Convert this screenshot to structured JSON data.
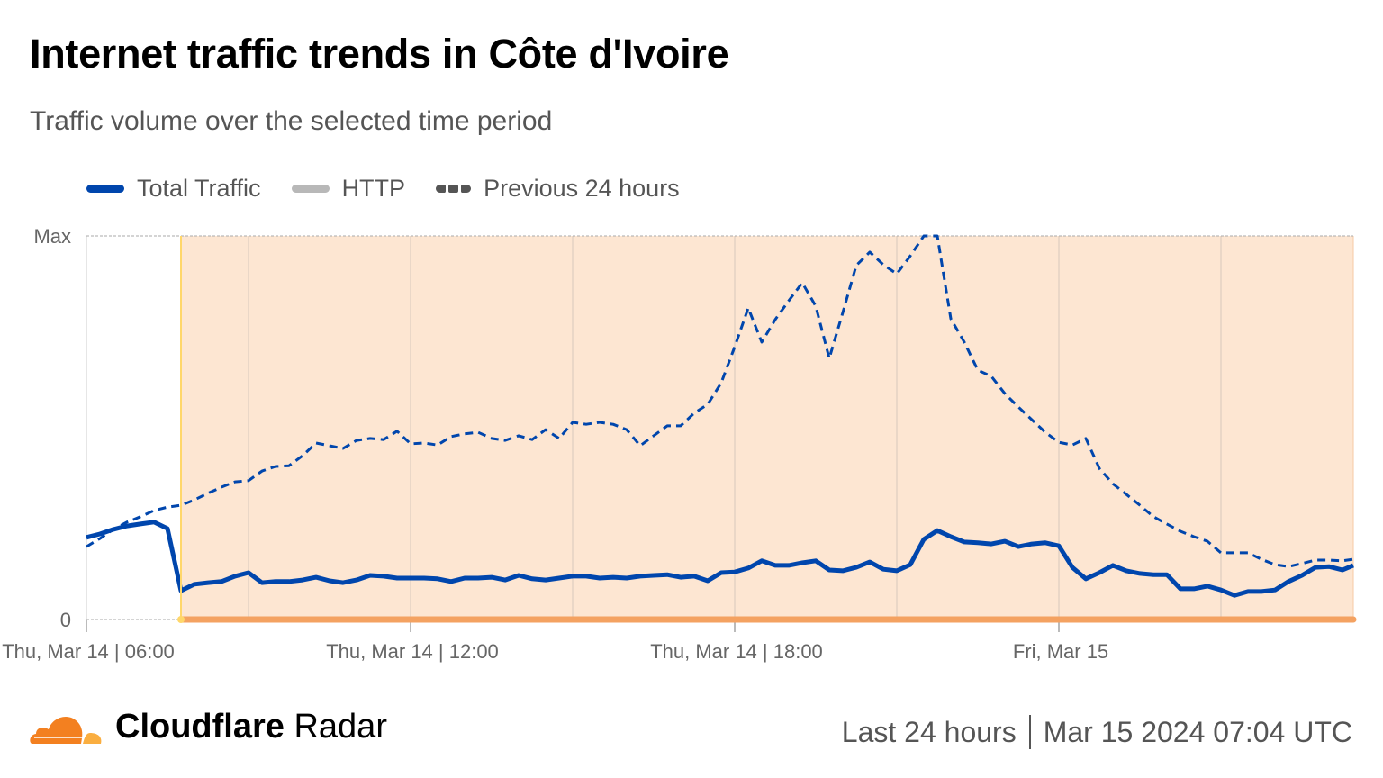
{
  "header": {
    "title": "Internet traffic trends in Côte d'Ivoire",
    "subtitle": "Traffic volume over the selected time period"
  },
  "legend": [
    {
      "label": "Total Traffic",
      "color": "#0046ad",
      "style": "solid"
    },
    {
      "label": "HTTP",
      "color": "#b8b8b8",
      "style": "solid"
    },
    {
      "label": "Previous 24 hours",
      "color": "#555555",
      "style": "dashed"
    }
  ],
  "chart_data": {
    "type": "line",
    "ylim": [
      0,
      100
    ],
    "y_tick_labels": [
      "0",
      "Max"
    ],
    "x_tick_labels": [
      {
        "at": "Mar 14 06:00",
        "label": "Thu, Mar 14 | 06:00"
      },
      {
        "at": "Mar 14 12:00",
        "label": "Thu, Mar 14 | 12:00"
      },
      {
        "at": "Mar 14 18:00",
        "label": "Thu, Mar 14 | 18:00"
      },
      {
        "at": "Mar 15 00:00",
        "label": "Fri, Mar 15"
      }
    ],
    "grid": "vertical",
    "highlight": {
      "start": "Mar 14 07:45",
      "color": "#fde6d2",
      "bar_color": "#f4a261",
      "start_line_color": "#ffd76a"
    },
    "x": [
      "Mar 14 06:00",
      "Mar 14 06:15",
      "Mar 14 06:30",
      "Mar 14 06:45",
      "Mar 14 07:00",
      "Mar 14 07:15",
      "Mar 14 07:30",
      "Mar 14 07:45",
      "Mar 14 08:00",
      "Mar 14 08:15",
      "Mar 14 08:30",
      "Mar 14 08:45",
      "Mar 14 09:00",
      "Mar 14 09:15",
      "Mar 14 09:30",
      "Mar 14 09:45",
      "Mar 14 10:00",
      "Mar 14 10:15",
      "Mar 14 10:30",
      "Mar 14 10:45",
      "Mar 14 11:00",
      "Mar 14 11:15",
      "Mar 14 11:30",
      "Mar 14 11:45",
      "Mar 14 12:00",
      "Mar 14 12:15",
      "Mar 14 12:30",
      "Mar 14 12:45",
      "Mar 14 13:00",
      "Mar 14 13:15",
      "Mar 14 13:30",
      "Mar 14 13:45",
      "Mar 14 14:00",
      "Mar 14 14:15",
      "Mar 14 14:30",
      "Mar 14 14:45",
      "Mar 14 15:00",
      "Mar 14 15:15",
      "Mar 14 15:30",
      "Mar 14 15:45",
      "Mar 14 16:00",
      "Mar 14 16:15",
      "Mar 14 16:30",
      "Mar 14 16:45",
      "Mar 14 17:00",
      "Mar 14 17:15",
      "Mar 14 17:30",
      "Mar 14 17:45",
      "Mar 14 18:00",
      "Mar 14 18:15",
      "Mar 14 18:30",
      "Mar 14 18:45",
      "Mar 14 19:00",
      "Mar 14 19:15",
      "Mar 14 19:30",
      "Mar 14 19:45",
      "Mar 14 20:00",
      "Mar 14 20:15",
      "Mar 14 20:30",
      "Mar 14 20:45",
      "Mar 14 21:00",
      "Mar 14 21:15",
      "Mar 14 21:30",
      "Mar 14 21:45",
      "Mar 14 22:00",
      "Mar 14 22:15",
      "Mar 14 22:30",
      "Mar 14 22:45",
      "Mar 14 23:00",
      "Mar 14 23:15",
      "Mar 14 23:30",
      "Mar 14 23:45",
      "Mar 15 00:00",
      "Mar 15 00:15",
      "Mar 15 00:30",
      "Mar 15 00:45",
      "Mar 15 01:00",
      "Mar 15 01:15",
      "Mar 15 01:30",
      "Mar 15 01:45",
      "Mar 15 02:00",
      "Mar 15 02:15",
      "Mar 15 02:30",
      "Mar 15 02:45",
      "Mar 15 03:00",
      "Mar 15 03:15",
      "Mar 15 03:30",
      "Mar 15 03:45",
      "Mar 15 04:00",
      "Mar 15 04:15",
      "Mar 15 04:30",
      "Mar 15 04:45",
      "Mar 15 05:00",
      "Mar 15 05:15",
      "Mar 15 05:30"
    ],
    "series": [
      {
        "name": "Total Traffic",
        "color": "#0046ad",
        "dash": false,
        "values": [
          21.4,
          22.3,
          23.5,
          24.4,
          24.9,
          25.4,
          23.7,
          7.5,
          9.2,
          9.6,
          9.9,
          11.3,
          12.2,
          9.6,
          9.9,
          9.9,
          10.3,
          11.0,
          10.1,
          9.6,
          10.3,
          11.5,
          11.3,
          10.8,
          10.8,
          10.8,
          10.6,
          9.9,
          10.8,
          10.8,
          11.0,
          10.3,
          11.5,
          10.6,
          10.3,
          10.8,
          11.3,
          11.3,
          10.8,
          11.0,
          10.8,
          11.3,
          11.5,
          11.7,
          11.0,
          11.3,
          10.1,
          12.2,
          12.4,
          13.4,
          15.3,
          14.1,
          14.1,
          14.8,
          15.3,
          12.9,
          12.7,
          13.6,
          15.0,
          13.1,
          12.7,
          14.3,
          20.9,
          23.2,
          21.6,
          20.2,
          20.0,
          19.7,
          20.4,
          19.0,
          19.7,
          20.0,
          19.2,
          13.6,
          10.6,
          12.2,
          14.1,
          12.7,
          12.0,
          11.7,
          11.7,
          8.0,
          8.0,
          8.7,
          7.7,
          6.3,
          7.3,
          7.3,
          7.7,
          9.9,
          11.5,
          13.6,
          13.8,
          12.9,
          14.1
        ]
      },
      {
        "name": "Previous 24 hours",
        "color": "#0046ad",
        "dash": true,
        "values": [
          19.0,
          21.1,
          23.5,
          25.4,
          26.8,
          28.4,
          29.3,
          29.8,
          31.2,
          32.9,
          34.5,
          35.9,
          36.2,
          38.7,
          39.9,
          40.1,
          42.7,
          46.0,
          45.3,
          44.6,
          46.7,
          47.2,
          46.9,
          49.1,
          45.8,
          46.0,
          45.5,
          47.7,
          48.4,
          48.8,
          47.2,
          46.7,
          47.9,
          46.9,
          49.5,
          47.2,
          51.4,
          50.9,
          51.4,
          50.9,
          49.5,
          45.3,
          47.9,
          50.5,
          50.5,
          53.8,
          56.1,
          61.7,
          71.1,
          81.2,
          72.3,
          78.2,
          83.1,
          87.8,
          81.7,
          68.1,
          80.0,
          92.3,
          95.8,
          92.5,
          90.1,
          94.8,
          100,
          100,
          78.4,
          72.3,
          65.0,
          63.4,
          58.9,
          55.4,
          52.1,
          48.8,
          46.2,
          45.5,
          47.2,
          39.4,
          35.4,
          32.6,
          29.8,
          26.8,
          24.9,
          23.0,
          21.6,
          20.4,
          17.4,
          17.4,
          17.4,
          15.7,
          14.3,
          13.8,
          14.6,
          15.5,
          15.5,
          15.3,
          15.7
        ]
      }
    ]
  },
  "footer": {
    "brand_bold": "Cloudflare",
    "brand_light": "Radar",
    "range_label": "Last 24 hours",
    "timestamp": "Mar 15 2024 07:04 UTC"
  }
}
